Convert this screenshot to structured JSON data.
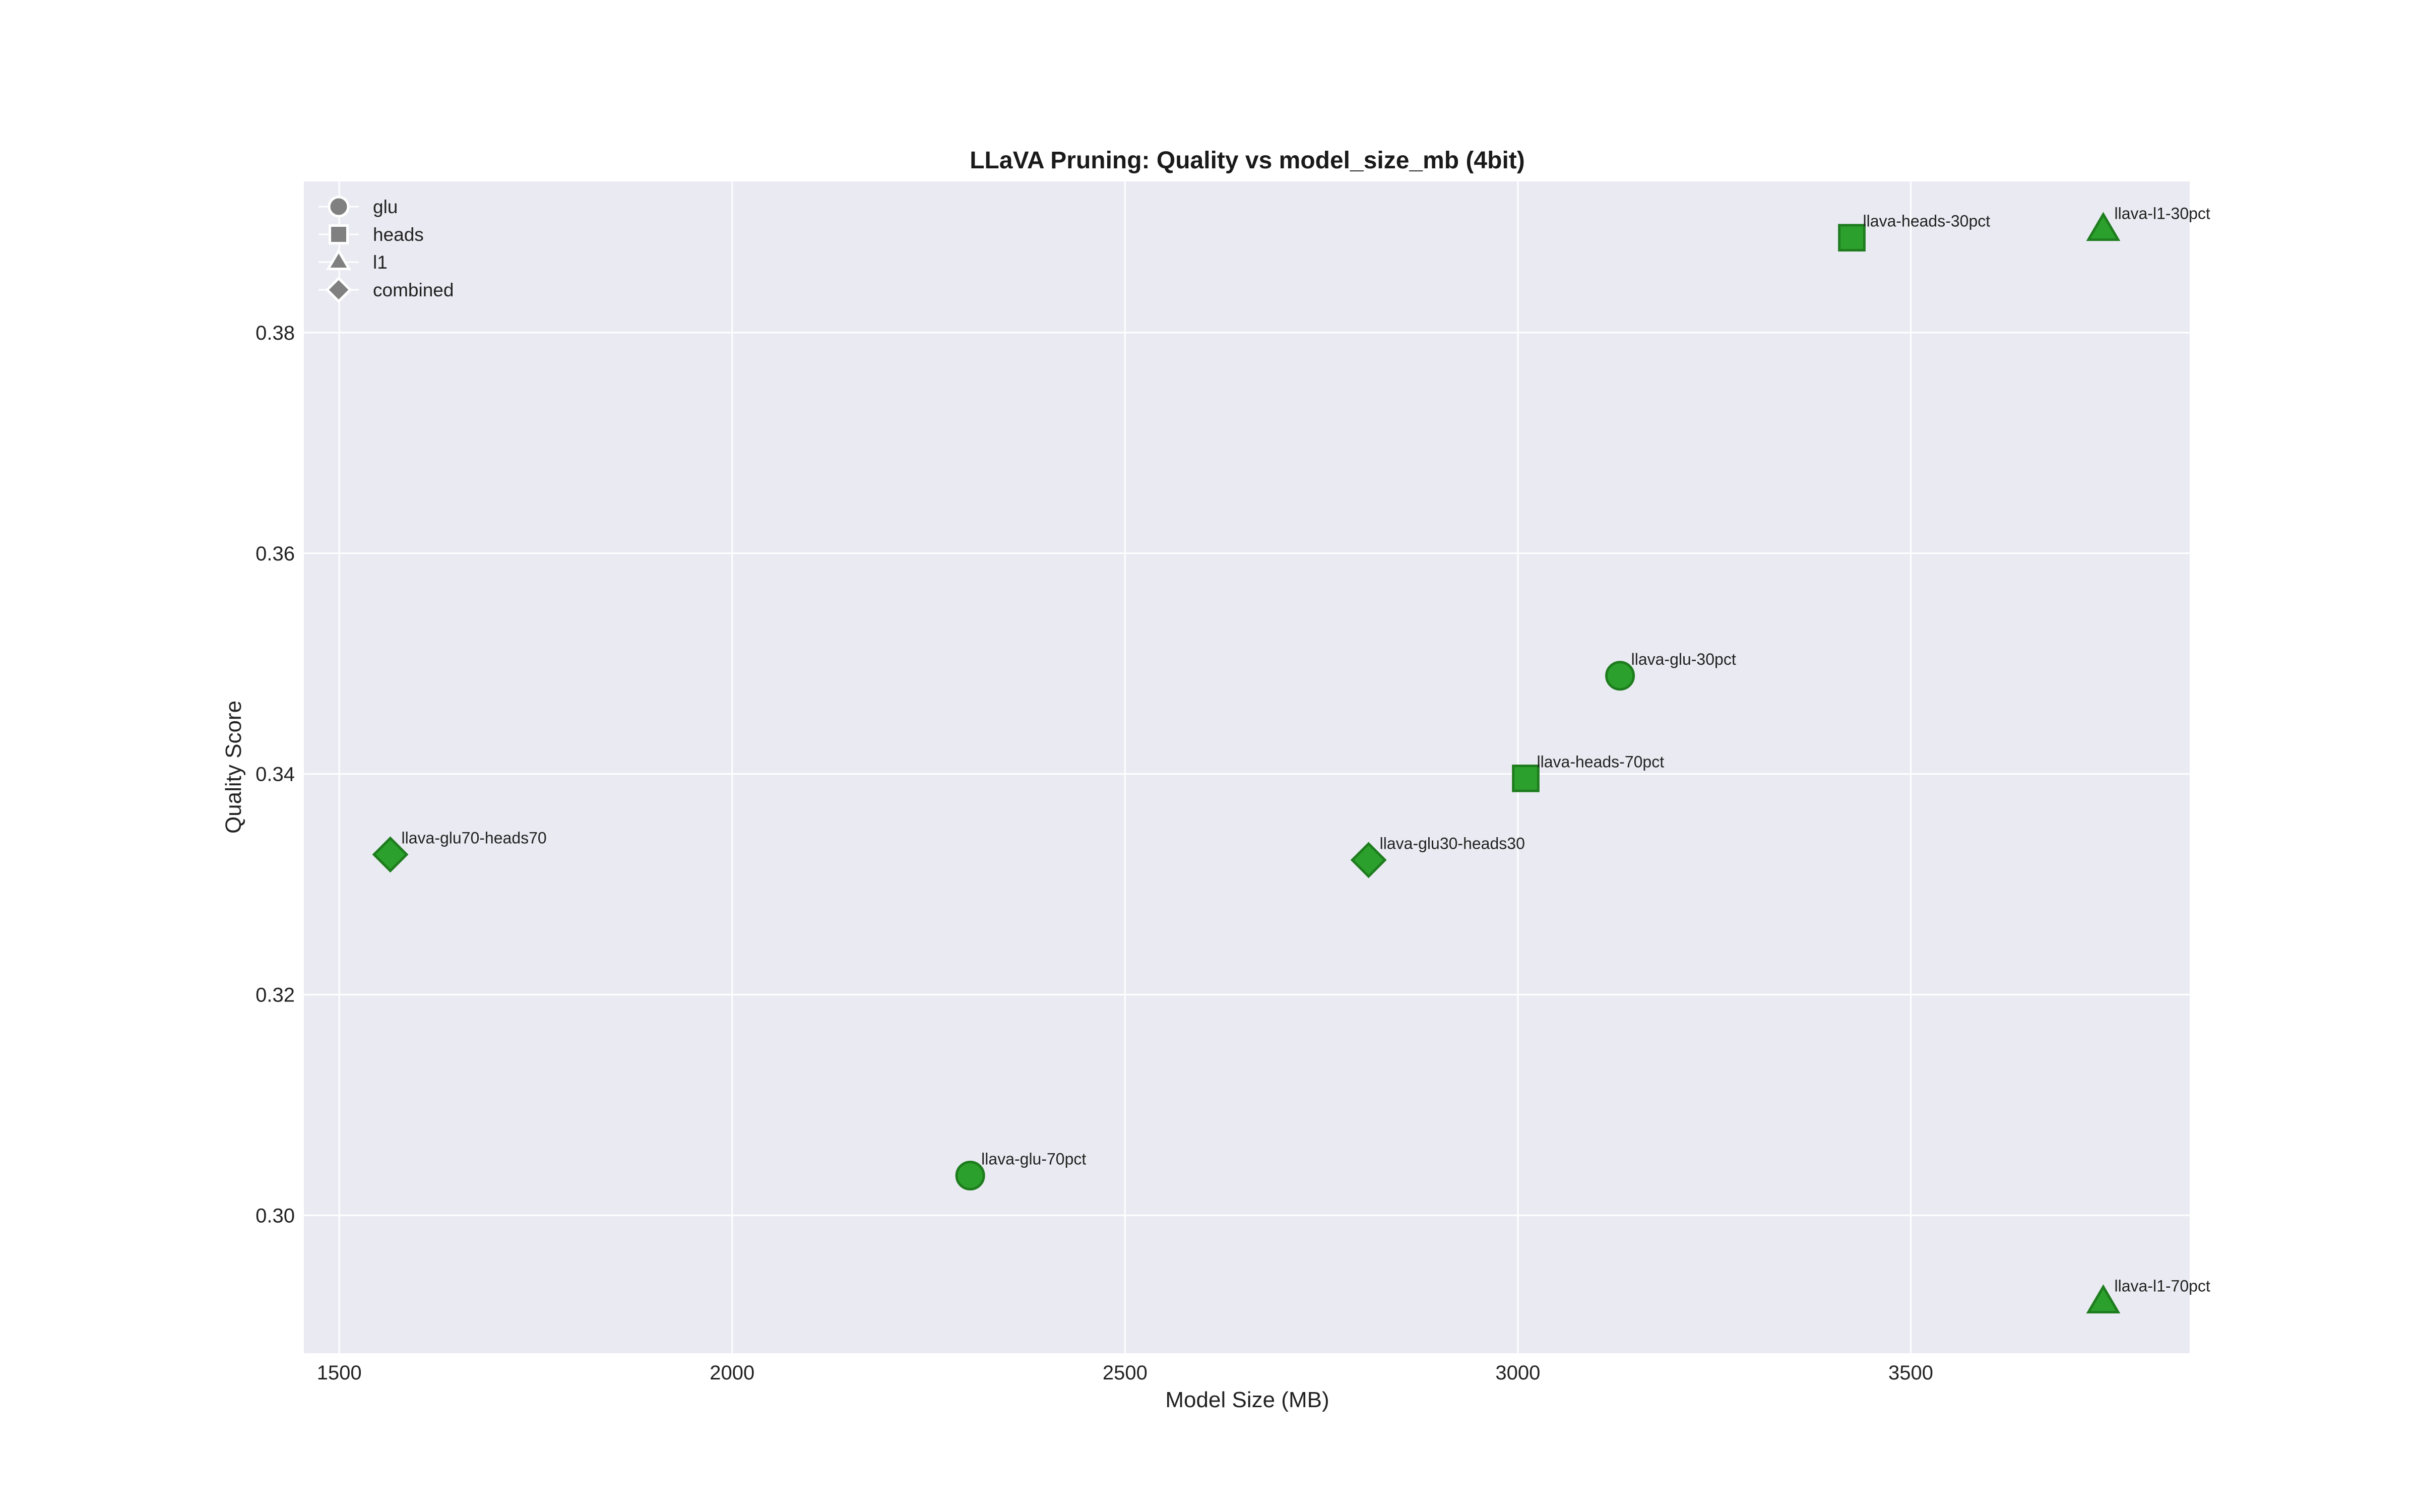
{
  "chart_data": {
    "type": "scatter",
    "title": "LLaVA Pruning: Quality vs model_size_mb (4bit)",
    "xlabel": "Model Size (MB)",
    "ylabel": "Quality Score",
    "xlim": [
      1455,
      3855
    ],
    "ylim": [
      0.2875,
      0.3937
    ],
    "xticks": [
      1500,
      2000,
      2500,
      3000,
      3500
    ],
    "yticks": [
      0.3,
      0.32,
      0.34,
      0.36,
      0.38
    ],
    "xtick_labels": [
      "1500",
      "2000",
      "2500",
      "3000",
      "3500"
    ],
    "ytick_labels": [
      "0.30",
      "0.32",
      "0.34",
      "0.36",
      "0.38"
    ],
    "grid": true,
    "legend_position": "top-left",
    "colors": {
      "plot_bg": "#eaeaf2",
      "grid": "#ffffff",
      "marker_fill": "#2ca02c",
      "marker_edge": "#1e7d1e",
      "legend_marker": "#808080"
    },
    "legend": [
      {
        "name": "glu",
        "marker": "circle"
      },
      {
        "name": "heads",
        "marker": "square"
      },
      {
        "name": "l1",
        "marker": "triangle"
      },
      {
        "name": "combined",
        "marker": "diamond"
      }
    ],
    "points": [
      {
        "label": "llava-heads-30pct",
        "x": 3425,
        "y": 0.3886,
        "group": "heads"
      },
      {
        "label": "llava-l1-30pct",
        "x": 3745,
        "y": 0.3893,
        "group": "l1"
      },
      {
        "label": "llava-glu-30pct",
        "x": 3130,
        "y": 0.3489,
        "group": "glu"
      },
      {
        "label": "llava-heads-70pct",
        "x": 3010,
        "y": 0.3396,
        "group": "heads"
      },
      {
        "label": "llava-glu70-heads70",
        "x": 1565,
        "y": 0.3327,
        "group": "combined"
      },
      {
        "label": "llava-glu30-heads30",
        "x": 2810,
        "y": 0.3322,
        "group": "combined"
      },
      {
        "label": "llava-glu-70pct",
        "x": 2303,
        "y": 0.3036,
        "group": "glu"
      },
      {
        "label": "llava-l1-70pct",
        "x": 3745,
        "y": 0.2921,
        "group": "l1"
      }
    ]
  }
}
